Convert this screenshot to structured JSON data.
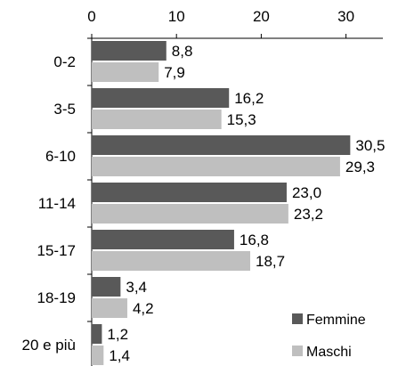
{
  "chart_data": {
    "type": "bar",
    "orientation": "horizontal",
    "title": "",
    "xlabel": "",
    "ylabel": "",
    "categories": [
      "0-2",
      "3-5",
      "6-10",
      "11-14",
      "15-17",
      "18-19",
      "20 e più"
    ],
    "xlim": [
      0,
      35
    ],
    "x_ticks": [
      "0",
      "10",
      "20",
      "30"
    ],
    "x_axis_position": "top",
    "grid": false,
    "legend_position": "bottom-right",
    "series": [
      {
        "name": "Femmine",
        "color": "#595959",
        "values": [
          8.8,
          16.2,
          30.5,
          23.0,
          16.8,
          3.4,
          1.2
        ],
        "labels": [
          "8,8",
          "16,2",
          "30,5",
          "23,0",
          "16,8",
          "3,4",
          "1,2"
        ]
      },
      {
        "name": "Maschi",
        "color": "#bfbfbf",
        "values": [
          7.9,
          15.3,
          29.3,
          23.2,
          18.7,
          4.2,
          1.4
        ],
        "labels": [
          "7,9",
          "15,3",
          "29,3",
          "23,2",
          "18,7",
          "4,2",
          "1,4"
        ]
      }
    ]
  }
}
